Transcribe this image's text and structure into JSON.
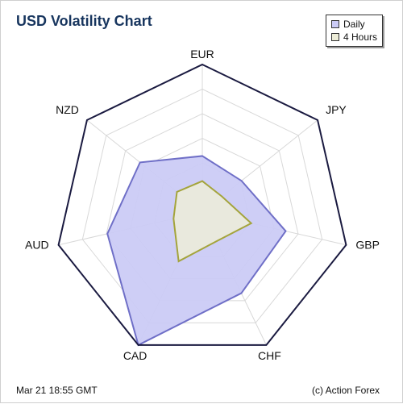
{
  "chart_data": {
    "type": "radar",
    "title": "USD Volatility Chart",
    "categories": [
      "EUR",
      "JPY",
      "GBP",
      "CHF",
      "CAD",
      "AUD",
      "NZD"
    ],
    "rmax": 100,
    "rings": 6,
    "series": [
      {
        "name": "Daily",
        "values": [
          38,
          34,
          58,
          61,
          100,
          66,
          54
        ],
        "fill": "#cbcbf6",
        "stroke": "#6f6fc7"
      },
      {
        "name": "4 Hours",
        "values": [
          21,
          17,
          34,
          22,
          37,
          20,
          22
        ],
        "fill": "#ededd8",
        "stroke": "#a4a43c"
      }
    ],
    "legend_position": "top-right"
  },
  "footer": {
    "timestamp": "Mar 21 18:55 GMT",
    "credit": "(c) Action Forex"
  },
  "colors": {
    "title": "#17355e",
    "outer_border": "#1a1a40",
    "grid": "#d8d8d8"
  }
}
